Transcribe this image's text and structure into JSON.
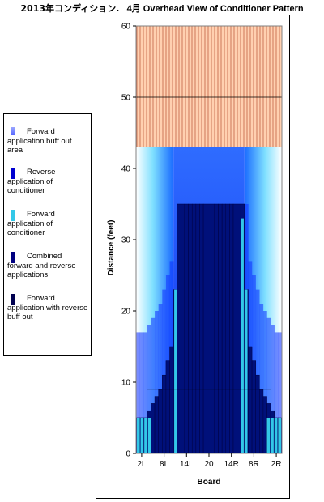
{
  "title": {
    "prefix": "2013年コンディション.",
    "main": "4月 Overhead View of Conditioner Pattern"
  },
  "legend": {
    "items": [
      {
        "label": "Forward application buff out area",
        "color": "#9aa6ff"
      },
      {
        "label": "Reverse application of conditioner",
        "color": "#0000d0"
      },
      {
        "label": "Forward application of conditioner",
        "color": "#33c8e8"
      },
      {
        "label": "Combined forward and reverse applications",
        "color": "#000080"
      },
      {
        "label": "Forward application with reverse buff out",
        "color": "#000050"
      }
    ]
  },
  "chart_data": {
    "type": "area",
    "title": "4月 Overhead View of Conditioner Pattern",
    "xlabel": "Board",
    "ylabel": "Distance (feet)",
    "ylim": [
      0,
      60
    ],
    "yticks": [
      0,
      10,
      20,
      30,
      40,
      50,
      60
    ],
    "xtick_labels": [
      "2L",
      "8L",
      "14L",
      "20",
      "14R",
      "8R",
      "2R"
    ],
    "boards": [
      "1L",
      "2L",
      "3L",
      "4L",
      "5L",
      "6L",
      "7L",
      "8L",
      "9L",
      "10L",
      "11L",
      "12L",
      "13L",
      "14L",
      "15L",
      "16L",
      "17L",
      "18L",
      "19L",
      "20",
      "19R",
      "18R",
      "17R",
      "16R",
      "15R",
      "14R",
      "13R",
      "12R",
      "11R",
      "10R",
      "9R",
      "8R",
      "7R",
      "6R",
      "5R",
      "4R",
      "3R",
      "2R",
      "1R"
    ],
    "lane_end_feet": 43,
    "pin_deck_range_feet": [
      43,
      60
    ],
    "gridlines_feet": [
      10,
      20,
      30,
      40,
      50
    ],
    "forward_conditioner_distance_by_board": [
      5,
      5,
      5,
      5,
      0,
      0,
      0,
      0,
      0,
      0,
      23,
      33,
      33,
      33,
      33,
      33,
      33,
      33,
      33,
      33,
      33,
      33,
      33,
      33,
      33,
      33,
      33,
      33,
      33,
      23,
      0,
      0,
      0,
      0,
      0,
      5,
      5,
      5,
      5
    ],
    "combined_forward_reverse_distance_by_board": [
      5,
      5,
      5,
      6,
      7,
      8,
      9,
      11,
      13,
      15,
      23,
      35,
      35,
      35,
      35,
      35,
      35,
      35,
      35,
      35,
      35,
      35,
      35,
      35,
      35,
      35,
      35,
      35,
      35,
      23,
      15,
      13,
      11,
      9,
      8,
      7,
      6,
      5,
      5
    ],
    "forward_buff_out_distance_by_board": [
      43,
      43,
      43,
      43,
      43,
      43,
      43,
      43,
      43,
      43,
      43,
      43,
      43,
      43,
      43,
      43,
      43,
      43,
      43,
      43,
      43,
      43,
      43,
      43,
      43,
      43,
      43,
      43,
      43,
      43,
      43,
      43,
      43,
      43,
      43,
      43,
      43,
      43,
      43
    ],
    "reverse_buff_out_distance_feet": 9,
    "legend_position": "left"
  }
}
